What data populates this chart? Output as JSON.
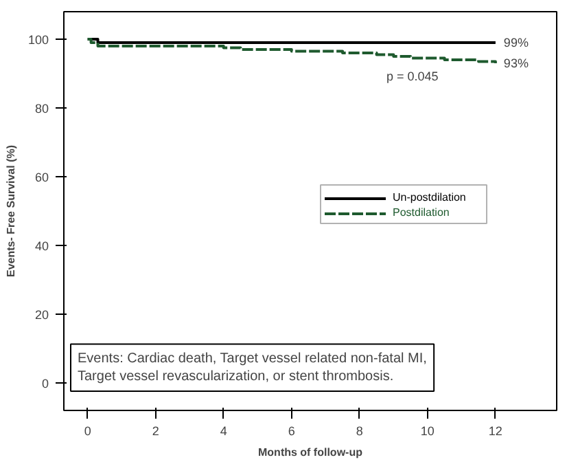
{
  "chart_data": {
    "type": "step",
    "xlabel": "Months of follow-up",
    "ylabel": "Events- Free Survival (%)",
    "xlim": [
      -0.7,
      13.8
    ],
    "ylim": [
      -8,
      108
    ],
    "xticks": [
      0,
      2,
      4,
      6,
      8,
      10,
      12
    ],
    "yticks": [
      0,
      20,
      40,
      60,
      80,
      100
    ],
    "grid": false,
    "legend": "right",
    "series": [
      {
        "name": "Un-postdilation",
        "color": "#000000",
        "line_style": "solid",
        "x": [
          0,
          0.3,
          12
        ],
        "values": [
          100,
          99,
          99
        ]
      },
      {
        "name": "Postdilation",
        "color": "#1e5a2e",
        "line_style": "dashed",
        "x": [
          0,
          0.1,
          0.3,
          1,
          2,
          3,
          4,
          4.5,
          5,
          6,
          7,
          7.5,
          8,
          8.5,
          9,
          9.5,
          10,
          10.5,
          11,
          11.5,
          12
        ],
        "values": [
          100,
          99,
          98,
          98,
          98,
          98,
          97.5,
          97,
          97,
          96.5,
          96.5,
          96,
          96,
          95.5,
          95,
          94.5,
          94.5,
          94,
          94,
          93.5,
          93
        ]
      }
    ],
    "annotations": [
      {
        "text": "99%",
        "x": 12,
        "y": 99
      },
      {
        "text": "93%",
        "x": 12,
        "y": 93
      },
      "p = 0.045",
      "Events: Cardiac death, Target vessel related non-fatal MI, Target vessel revascularization, or stent thrombosis."
    ]
  }
}
